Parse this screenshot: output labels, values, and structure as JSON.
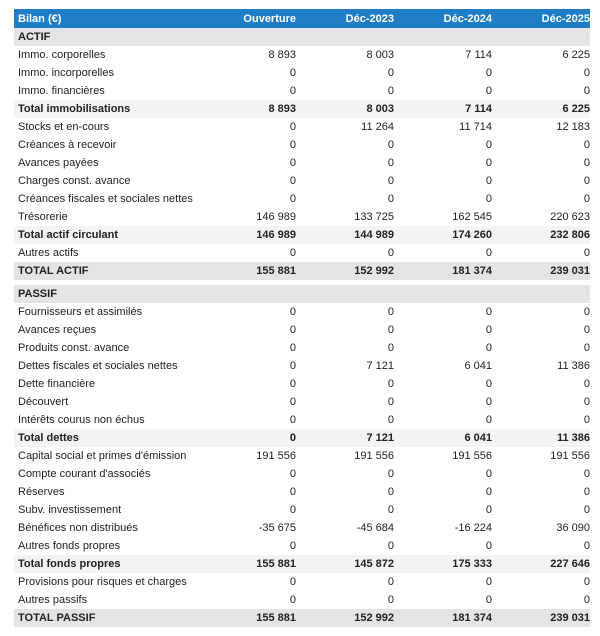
{
  "header": {
    "title": "Bilan (€)",
    "columns": [
      "Ouverture",
      "Déc-2023",
      "Déc-2024",
      "Déc-2025"
    ]
  },
  "colors": {
    "header_bg": "#1f7dc6",
    "section_bg": "#e4e4e4",
    "total_bg": "#f3f3f3"
  },
  "rows": [
    {
      "type": "section",
      "label": "ACTIF",
      "values": []
    },
    {
      "type": "item",
      "label": "Immo. corporelles",
      "values": [
        "8 893",
        "8 003",
        "7 114",
        "6 225"
      ]
    },
    {
      "type": "item",
      "label": "Immo. incorporelles",
      "values": [
        "0",
        "0",
        "0",
        "0"
      ]
    },
    {
      "type": "item",
      "label": "Immo. financières",
      "values": [
        "0",
        "0",
        "0",
        "0"
      ]
    },
    {
      "type": "total",
      "label": "Total immobilisations",
      "values": [
        "8 893",
        "8 003",
        "7 114",
        "6 225"
      ]
    },
    {
      "type": "item",
      "label": "Stocks et en-cours",
      "values": [
        "0",
        "11 264",
        "11 714",
        "12 183"
      ]
    },
    {
      "type": "item",
      "label": "Créances à recevoir",
      "values": [
        "0",
        "0",
        "0",
        "0"
      ]
    },
    {
      "type": "item",
      "label": "Avances payées",
      "values": [
        "0",
        "0",
        "0",
        "0"
      ]
    },
    {
      "type": "item",
      "label": "Charges const. avance",
      "values": [
        "0",
        "0",
        "0",
        "0"
      ]
    },
    {
      "type": "item",
      "label": "Créances fiscales et sociales nettes",
      "values": [
        "0",
        "0",
        "0",
        "0"
      ]
    },
    {
      "type": "item",
      "label": "Trésorerie",
      "values": [
        "146 989",
        "133 725",
        "162 545",
        "220 623"
      ]
    },
    {
      "type": "total",
      "label": "Total actif circulant",
      "values": [
        "146 989",
        "144 989",
        "174 260",
        "232 806"
      ]
    },
    {
      "type": "item",
      "label": "Autres actifs",
      "values": [
        "0",
        "0",
        "0",
        "0"
      ]
    },
    {
      "type": "grand",
      "label": "TOTAL ACTIF",
      "values": [
        "155 881",
        "152 992",
        "181 374",
        "239 031"
      ]
    },
    {
      "type": "gap",
      "label": "",
      "values": []
    },
    {
      "type": "section",
      "label": "PASSIF",
      "values": []
    },
    {
      "type": "item",
      "label": "Fournisseurs et assimilés",
      "values": [
        "0",
        "0",
        "0",
        "0"
      ]
    },
    {
      "type": "item",
      "label": "Avances reçues",
      "values": [
        "0",
        "0",
        "0",
        "0"
      ]
    },
    {
      "type": "item",
      "label": "Produits const. avance",
      "values": [
        "0",
        "0",
        "0",
        "0"
      ]
    },
    {
      "type": "item",
      "label": "Dettes fiscales et sociales nettes",
      "values": [
        "0",
        "7 121",
        "6 041",
        "11 386"
      ]
    },
    {
      "type": "item",
      "label": "Dette financière",
      "values": [
        "0",
        "0",
        "0",
        "0"
      ]
    },
    {
      "type": "item",
      "label": "Découvert",
      "values": [
        "0",
        "0",
        "0",
        "0"
      ]
    },
    {
      "type": "item",
      "label": "Intérêts courus non échus",
      "values": [
        "0",
        "0",
        "0",
        "0"
      ]
    },
    {
      "type": "total",
      "label": "Total dettes",
      "values": [
        "0",
        "7 121",
        "6 041",
        "11 386"
      ]
    },
    {
      "type": "item",
      "label": "Capital social et primes d'émission",
      "values": [
        "191 556",
        "191 556",
        "191 556",
        "191 556"
      ]
    },
    {
      "type": "item",
      "label": "Compte courant d'associés",
      "values": [
        "0",
        "0",
        "0",
        "0"
      ]
    },
    {
      "type": "item",
      "label": "Réserves",
      "values": [
        "0",
        "0",
        "0",
        "0"
      ]
    },
    {
      "type": "item",
      "label": "Subv. investissement",
      "values": [
        "0",
        "0",
        "0",
        "0"
      ]
    },
    {
      "type": "item",
      "label": "Bénéfices non distribués",
      "values": [
        "-35 675",
        "-45 684",
        "-16 224",
        "36 090"
      ]
    },
    {
      "type": "item",
      "label": "Autres fonds propres",
      "values": [
        "0",
        "0",
        "0",
        "0"
      ]
    },
    {
      "type": "total",
      "label": "Total fonds propres",
      "values": [
        "155 881",
        "145 872",
        "175 333",
        "227 646"
      ]
    },
    {
      "type": "item",
      "label": "Provisions pour risques et charges",
      "values": [
        "0",
        "0",
        "0",
        "0"
      ]
    },
    {
      "type": "item",
      "label": "Autres passifs",
      "values": [
        "0",
        "0",
        "0",
        "0"
      ]
    },
    {
      "type": "grand",
      "label": "TOTAL PASSIF",
      "values": [
        "155 881",
        "152 992",
        "181 374",
        "239 031"
      ]
    }
  ]
}
